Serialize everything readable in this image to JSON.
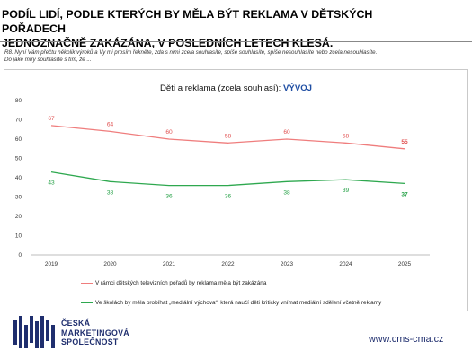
{
  "header": {
    "title_line1": "PODÍL LIDÍ, PODLE KTERÝCH BY MĚLA BÝT REKLAMA V DĚTSKÝCH POŘADECH",
    "title_line2": "JEDNOZNAČNĚ ZAKÁZÁNA, V POSLEDNÍCH LETECH KLESÁ.",
    "question_line1": "R8. Nyní Vám přečtu několik výroků a Vy mi prosím řekněte, zda s nimi zcela souhlasíte, spíše souhlasíte, spíše nesouhlasíte nebo zcela nesouhlasíte.",
    "question_line2": "Do jaké míry souhlasíte s tím, že ..."
  },
  "chart_data": {
    "type": "line",
    "title": "Děti a reklama (zcela souhlasí): ",
    "title_highlight": "VÝVOJ",
    "x": [
      "2019",
      "2020",
      "2021",
      "2022",
      "2023",
      "2024",
      "2025"
    ],
    "ylim": [
      0,
      80
    ],
    "yticks": [
      0,
      10,
      20,
      30,
      40,
      50,
      60,
      70,
      80
    ],
    "grid": false,
    "legend_position": "bottom",
    "series": [
      {
        "name": "V rámci dětských televizních pořadů by reklama měla být zakázána",
        "values": [
          67,
          64,
          60,
          58,
          60,
          58,
          55
        ],
        "color": "#ef7d7d",
        "label_color": "#e05050"
      },
      {
        "name": "Ve školách by měla probíhat „mediální výchova“, která naučí děti kriticky vnímat mediální sdělení včetně reklamy",
        "values": [
          43,
          38,
          36,
          36,
          38,
          39,
          37
        ],
        "color": "#2ea84f",
        "label_color": "#23a045"
      }
    ]
  },
  "footer": {
    "logo_line1": "ČESKÁ",
    "logo_line2": "MARKETINGOVÁ",
    "logo_line3": "SPOLEČNOST",
    "website": "www.cms-cma.cz",
    "logo_color": "#1f2e6e"
  }
}
